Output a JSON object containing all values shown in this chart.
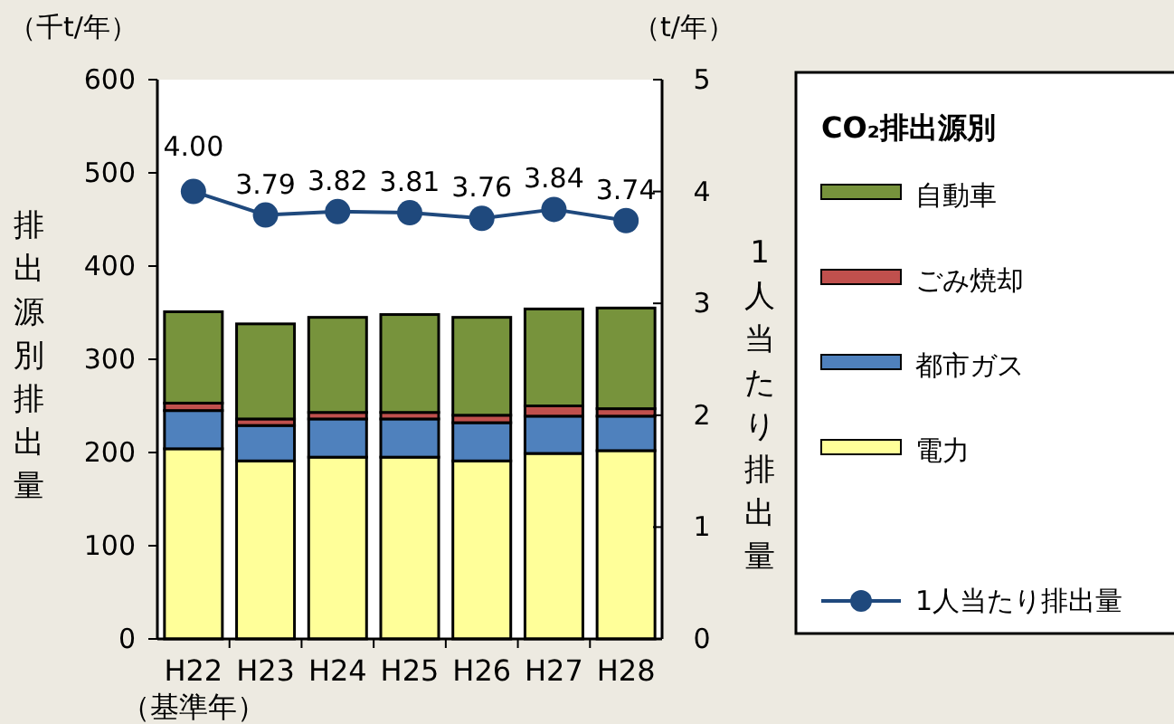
{
  "chart_data": {
    "type": "bar",
    "stacked": true,
    "categories": [
      "H22\n（基準年）",
      "H23",
      "H24",
      "H25",
      "H26",
      "H27",
      "H28"
    ],
    "ylabel": "排出源別排出量",
    "y2label": "1人当たり排出量",
    "legend_title": "CO₂排出源別",
    "legend": "right",
    "grid": false,
    "ylim": [
      0,
      600
    ],
    "yticks": [
      0,
      100,
      200,
      300,
      400,
      500,
      600
    ],
    "y2lim": [
      0,
      5
    ],
    "y2ticks": [
      0,
      1,
      2,
      3,
      4,
      5
    ],
    "annotations": [
      "（千t/年）",
      "（t/年）"
    ],
    "series": [
      {
        "name": "電力",
        "color": "#ffff99",
        "values": [
          204,
          191,
          195,
          195,
          191,
          199,
          202
        ]
      },
      {
        "name": "都市ガス",
        "color": "#4f81bd",
        "values": [
          41,
          38,
          41,
          41,
          41,
          40,
          37
        ]
      },
      {
        "name": "ごみ焼却",
        "color": "#c0504d",
        "values": [
          8,
          7,
          7,
          7,
          8,
          11,
          8
        ]
      },
      {
        "name": "自動車",
        "color": "#77933c",
        "values": [
          98,
          102,
          102,
          105,
          105,
          104,
          108
        ]
      },
      {
        "name": "1人当たり排出量",
        "type": "line",
        "axis": "y2",
        "color": "#1f497d",
        "marker": "circle",
        "values": [
          4.0,
          3.79,
          3.82,
          3.81,
          3.76,
          3.84,
          3.74
        ],
        "value_labels": [
          "4.00",
          "3.79",
          "3.82",
          "3.81",
          "3.76",
          "3.84",
          "3.74"
        ]
      }
    ]
  }
}
